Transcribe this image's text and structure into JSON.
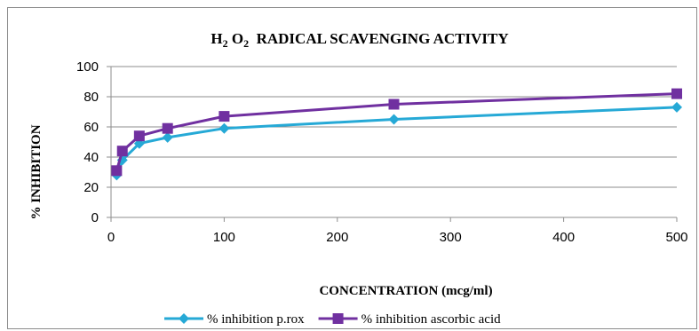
{
  "chart_data": {
    "type": "line",
    "title": {
      "parts": [
        {
          "text": "H",
          "sub": false
        },
        {
          "text": "2",
          "sub": true
        },
        {
          "text": " O",
          "sub": false
        },
        {
          "text": "2",
          "sub": true
        },
        {
          "text": "  RADICAL SCAVENGING ACTIVITY",
          "sub": false
        }
      ]
    },
    "xlabel": "CONCENTRATION (mcg/ml)",
    "ylabel": "% INHIBITION",
    "xlim": [
      0,
      500
    ],
    "ylim": [
      0,
      100
    ],
    "xticks": [
      0,
      100,
      200,
      300,
      400,
      500
    ],
    "yticks": [
      0,
      20,
      40,
      60,
      80,
      100
    ],
    "grid": "horizontal",
    "legend_position": "bottom",
    "series": [
      {
        "name": "% inhibition p.rox",
        "color": "#26a9d6",
        "marker": "diamond",
        "x": [
          5,
          10,
          25,
          50,
          100,
          250,
          500
        ],
        "y": [
          28,
          38,
          49,
          53,
          59,
          65,
          73
        ]
      },
      {
        "name": "% inhibition ascorbic acid",
        "color": "#7030a0",
        "marker": "square",
        "x": [
          5,
          10,
          25,
          50,
          100,
          250,
          500
        ],
        "y": [
          31,
          44,
          54,
          59,
          67,
          75,
          82
        ]
      }
    ]
  }
}
